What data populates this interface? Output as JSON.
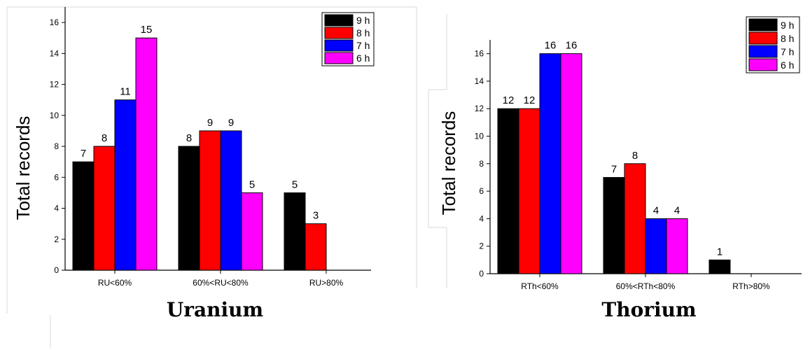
{
  "legend_colors": [
    "#000000",
    "#ff0000",
    "#0000ff",
    "#ff00ff"
  ],
  "chart_data": [
    {
      "type": "bar",
      "title": "Uranium",
      "ylabel": "Total records",
      "xlabel": "",
      "categories": [
        "RU<60%",
        "60%<RU<80%",
        "RU>80%"
      ],
      "series": [
        {
          "name": "9 h",
          "values": [
            7,
            8,
            5
          ]
        },
        {
          "name": "8 h",
          "values": [
            8,
            9,
            3
          ]
        },
        {
          "name": "7 h",
          "values": [
            11,
            9,
            0
          ]
        },
        {
          "name": "6 h",
          "values": [
            15,
            5,
            0
          ]
        }
      ],
      "data_labels": [
        [
          "7",
          "8",
          "11",
          "15"
        ],
        [
          "8",
          "9",
          "9",
          "5"
        ],
        [
          "5",
          "3",
          "",
          ""
        ]
      ],
      "yticks": [
        "0",
        "2",
        "4",
        "6",
        "8",
        "10",
        "12",
        "14",
        "16"
      ],
      "ylim": [
        0,
        17
      ],
      "legend": "top-right",
      "grid": false
    },
    {
      "type": "bar",
      "title": "Thorium",
      "ylabel": "Total records",
      "xlabel": "",
      "categories": [
        "RTh<60%",
        "60%<RTh<80%",
        "RTh>80%"
      ],
      "series": [
        {
          "name": "9 h",
          "values": [
            12,
            7,
            1
          ]
        },
        {
          "name": "8 h",
          "values": [
            12,
            8,
            0
          ]
        },
        {
          "name": "7 h",
          "values": [
            16,
            4,
            0
          ]
        },
        {
          "name": "6 h",
          "values": [
            16,
            4,
            0
          ]
        }
      ],
      "data_labels": [
        [
          "12",
          "12",
          "16",
          "16"
        ],
        [
          "7",
          "8",
          "4",
          "4"
        ],
        [
          "1",
          "",
          "",
          ""
        ]
      ],
      "yticks": [
        "0",
        "2",
        "4",
        "6",
        "8",
        "10",
        "12",
        "14",
        "16"
      ],
      "ylim": [
        0,
        17
      ],
      "legend": "top-right",
      "grid": false
    }
  ]
}
